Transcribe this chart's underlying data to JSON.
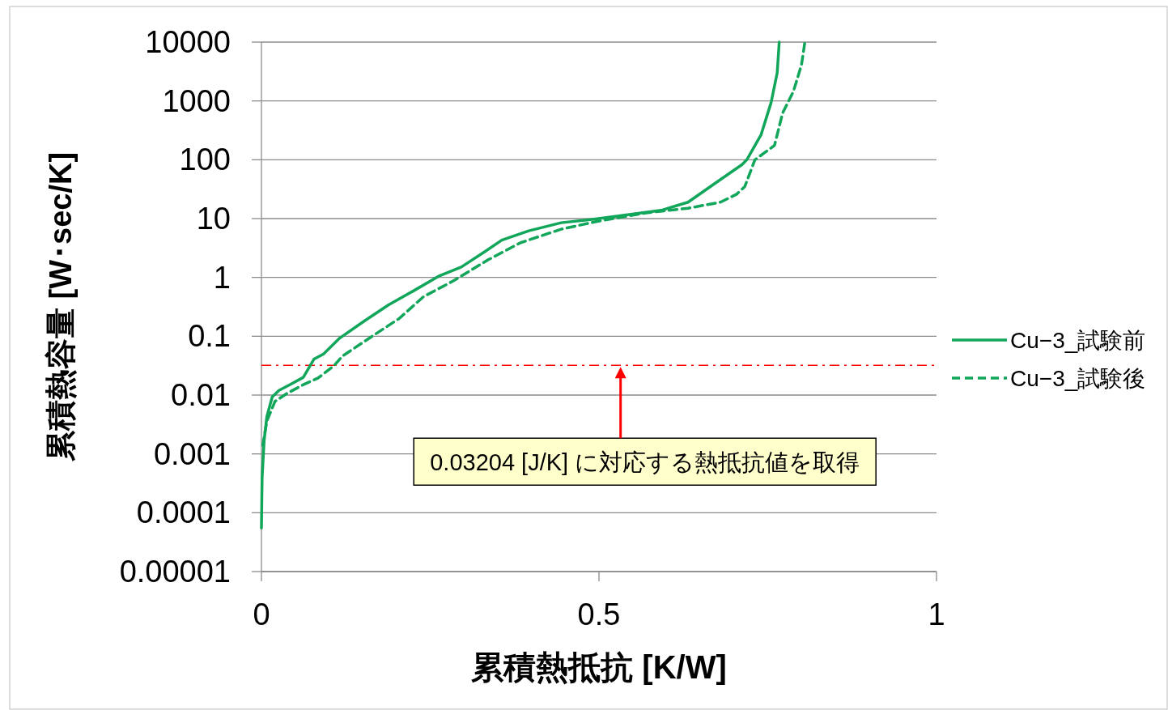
{
  "chart_data": {
    "type": "line",
    "xlabel": "累積熱抵抗 [K/W]",
    "ylabel": "累積熱容量 [W･sec/K]",
    "log": "y",
    "xlim": [
      0,
      1
    ],
    "xticks": [
      0,
      0.5,
      1
    ],
    "ylim": [
      1e-05,
      10000
    ],
    "yticks": [
      {
        "value": 1e-05,
        "label": "0.00001"
      },
      0.0001,
      0.001,
      0.01,
      0.1,
      1,
      10,
      100,
      1000,
      10000
    ],
    "grid": "y",
    "legend": "right",
    "series": [
      {
        "name": "Cu−3_試験前",
        "color": "#12a65a",
        "line_style": "solid",
        "x": [
          0,
          0.001,
          0.004,
          0.008,
          0.016,
          0.026,
          0.042,
          0.062,
          0.078,
          0.092,
          0.116,
          0.152,
          0.188,
          0.224,
          0.264,
          0.296,
          0.332,
          0.356,
          0.396,
          0.444,
          0.49,
          0.592,
          0.632,
          0.671,
          0.712,
          0.719,
          0.74,
          0.755,
          0.764,
          0.767
        ],
        "values": [
          5.5e-05,
          0.0004,
          0.0017,
          0.0043,
          0.0093,
          0.012,
          0.015,
          0.02,
          0.041,
          0.05,
          0.093,
          0.18,
          0.34,
          0.58,
          1.07,
          1.5,
          2.8,
          4.3,
          6.2,
          8.5,
          9.7,
          13.8,
          19,
          39,
          83,
          100,
          264,
          940,
          3000,
          10000
        ]
      },
      {
        "name": "Cu−3_試験後",
        "color": "#12a65a",
        "line_style": "dashed",
        "x": [
          0.002,
          0.008,
          0.02,
          0.038,
          0.062,
          0.084,
          0.108,
          0.12,
          0.164,
          0.204,
          0.24,
          0.284,
          0.336,
          0.384,
          0.444,
          0.5,
          0.572,
          0.632,
          0.68,
          0.704,
          0.716,
          0.731,
          0.76,
          0.772,
          0.788,
          0.8,
          0.805
        ],
        "values": [
          0.0014,
          0.0036,
          0.0078,
          0.0107,
          0.015,
          0.0195,
          0.032,
          0.046,
          0.1,
          0.2,
          0.47,
          0.87,
          2.0,
          3.9,
          6.6,
          9.1,
          12.6,
          15,
          19,
          26,
          35,
          100,
          175,
          620,
          1450,
          4100,
          10000
        ]
      }
    ],
    "ref_lines": [
      {
        "axis": "y",
        "value": 0.03204,
        "color": "#ff0000",
        "line_style": "dashdot"
      }
    ],
    "annotations": [
      "0.03204 [J/K] に対応する熱抵抗値を取得"
    ]
  }
}
